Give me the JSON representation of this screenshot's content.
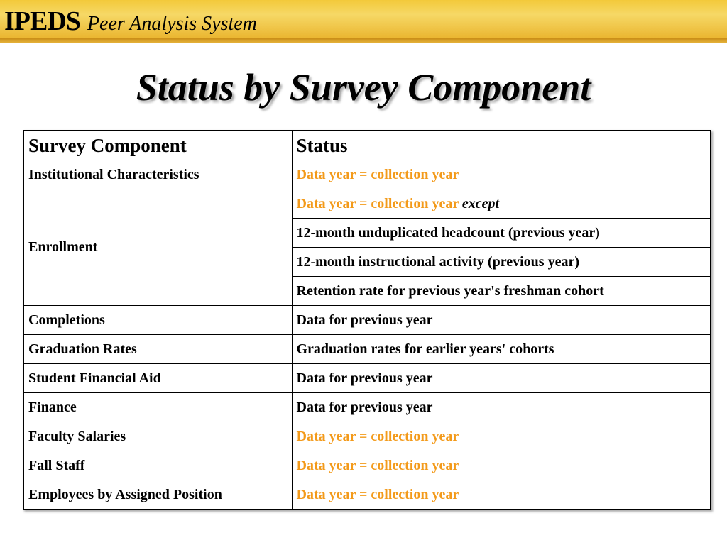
{
  "banner": {
    "brand_main": "IPEDS",
    "brand_sub": "Peer Analysis System",
    "colors": {
      "background": "#f3c93a",
      "text": "#000000"
    }
  },
  "slide": {
    "title": "Status by Survey Component"
  },
  "table": {
    "headers": [
      "Survey Component",
      "Status"
    ],
    "rows": [
      {
        "component": "Institutional Characteristics",
        "status": [
          "Data year = collection year"
        ],
        "highlight": [
          true
        ]
      },
      {
        "component": "Enrollment",
        "status": [
          "Data year = collection year",
          "12-month unduplicated headcount (previous year)",
          "12-month instructional activity (previous year)",
          "Retention rate for previous year's freshman cohort"
        ],
        "status_suffix": "except",
        "highlight": [
          true,
          false,
          false,
          false
        ]
      },
      {
        "component": "Completions",
        "status": [
          "Data for previous year"
        ],
        "highlight": [
          false
        ]
      },
      {
        "component": "Graduation Rates",
        "status": [
          "Graduation rates for earlier years' cohorts"
        ],
        "highlight": [
          false
        ]
      },
      {
        "component": "Student Financial Aid",
        "status": [
          "Data for previous year"
        ],
        "highlight": [
          false
        ]
      },
      {
        "component": "Finance",
        "status": [
          "Data for previous year"
        ],
        "highlight": [
          false
        ]
      },
      {
        "component": "Faculty Salaries",
        "status": [
          "Data year = collection year"
        ],
        "highlight": [
          true
        ]
      },
      {
        "component": "Fall Staff",
        "status": [
          "Data year = collection year"
        ],
        "highlight": [
          true
        ]
      },
      {
        "component": "Employees by Assigned Position",
        "status": [
          "Data year = collection year"
        ],
        "highlight": [
          true
        ]
      }
    ],
    "colors": {
      "highlight": "#f39a1a",
      "text": "#000000",
      "border": "#000000"
    }
  }
}
